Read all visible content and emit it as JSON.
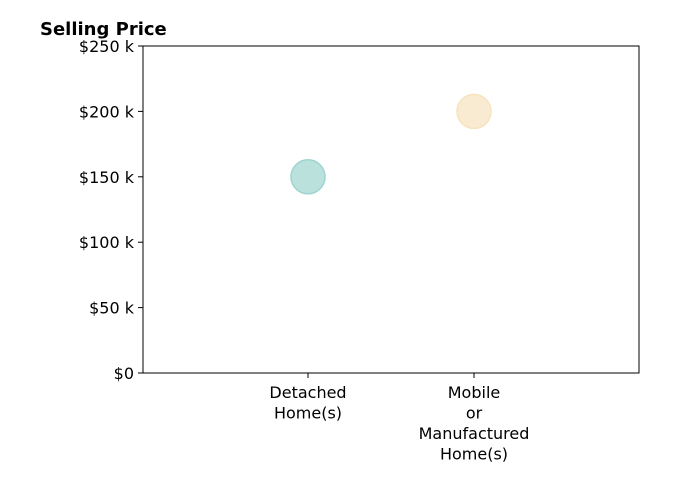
{
  "chart_data": {
    "type": "scatter",
    "title": "Selling Price",
    "categories": [
      "Detached\nHome(s)",
      "Mobile\nor\nManufactured\nHome(s)"
    ],
    "points": [
      {
        "category": "Detached\nHome(s)",
        "value": 150000,
        "color": "#9ed4cf"
      },
      {
        "category": "Mobile\nor\nManufactured\nHome(s)",
        "value": 200000,
        "color": "#f7e3bd"
      }
    ],
    "yticks": [
      {
        "value": 0,
        "label": "$0"
      },
      {
        "value": 50000,
        "label": "$50 k"
      },
      {
        "value": 100000,
        "label": "$100 k"
      },
      {
        "value": 150000,
        "label": "$150 k"
      },
      {
        "value": 200000,
        "label": "$200 k"
      },
      {
        "value": 250000,
        "label": "$250 k"
      }
    ],
    "ylim": [
      0,
      250000
    ],
    "xlabel": "",
    "ylabel": "",
    "grid": false,
    "legend": "none"
  }
}
